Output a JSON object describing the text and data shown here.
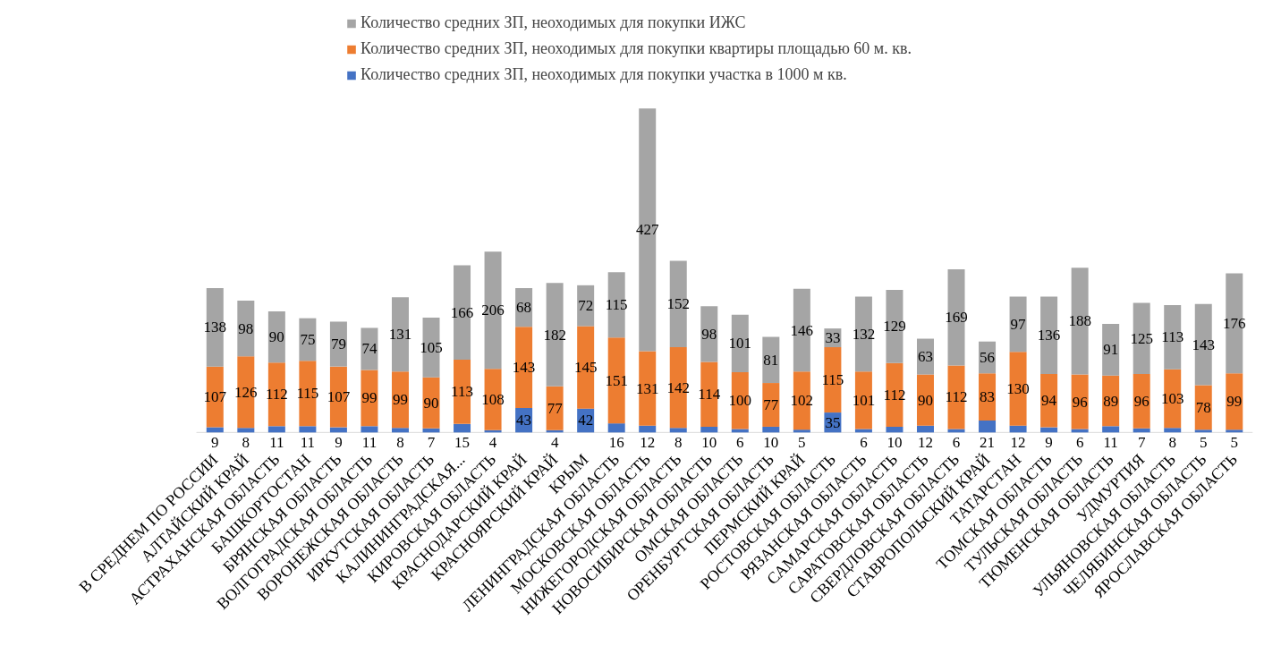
{
  "chart_data": {
    "type": "bar",
    "stacked": true,
    "data_labels": true,
    "legend": "top",
    "tick_labels": "x",
    "categories": [
      "В СРЕДНЕМ ПО РОССИИ",
      "АЛТАЙСКИЙ КРАЙ",
      "АСТРАХАНСКАЯ ОБЛАСТЬ",
      "БАШКОРТОСТАН",
      "БРЯНСКАЯ ОБЛАСТЬ",
      "ВОЛГОГРАДСКАЯ ОБЛАСТЬ",
      "ВОРОНЕЖСКАЯ ОБЛАСТЬ",
      "ИРКУТСКАЯ ОБЛАСТЬ",
      "КАЛИНИНГРАДСКАЯ...",
      "КИРОВСКАЯ ОБЛАСТЬ",
      "КРАСНОДАРСКИЙ КРАЙ",
      "КРАСНОЯРСКИЙ КРАЙ",
      "КРЫМ",
      "ЛЕНИНГРАДСКАЯ ОБЛАСТЬ",
      "МОСКОВСКАЯ ОБЛАСТЬ",
      "НИЖЕГОРОДСКАЯ ОБЛАСТЬ",
      "НОВОСИБИРСКАЯ ОБЛАСТЬ",
      "ОМСКАЯ ОБЛАСТЬ",
      "ОРЕНБУРГСКАЯ ОБЛАСТЬ",
      "ПЕРМСКИЙ КРАЙ",
      "РОСТОВСКАЯ ОБЛАСТЬ",
      "РЯЗАНСКАЯ ОБЛАСТЬ",
      "САМАРСКАЯ ОБЛАСТЬ",
      "САРАТОВСКАЯ ОБЛАСТЬ",
      "СВЕРДЛОВСКАЯ ОБЛАСТЬ",
      "СТАВРОПОЛЬСКИЙ КРАЙ",
      "ТАТАРСТАН",
      "ТОМСКАЯ ОБЛАСТЬ",
      "ТУЛЬСКАЯ ОБЛАСТЬ",
      "ТЮМЕНСКАЯ ОБЛАСТЬ",
      "УДМУРТИЯ",
      "УЛЬЯНОВСКАЯ ОБЛАСТЬ",
      "ЧЕЛЯБИНСКАЯ ОБЛАСТЬ",
      "ЯРОСЛАВСКАЯ ОБЛАСТЬ"
    ],
    "series": [
      {
        "name": "Количество средних ЗП, неоходимых для покупки участка в 1000 м кв.",
        "color": "#4472c4",
        "values": [
          9,
          8,
          11,
          11,
          9,
          11,
          8,
          7,
          15,
          4,
          43,
          4,
          42,
          16,
          12,
          8,
          10,
          6,
          10,
          5,
          35,
          6,
          10,
          12,
          6,
          21,
          12,
          9,
          6,
          11,
          7,
          8,
          5,
          5
        ]
      },
      {
        "name": "Количество средних ЗП, неоходимых для покупки квартиры площадью 60 м. кв.",
        "color": "#ed7d31",
        "values": [
          107,
          126,
          112,
          115,
          107,
          99,
          99,
          90,
          113,
          108,
          143,
          77,
          145,
          151,
          131,
          142,
          114,
          100,
          77,
          102,
          115,
          101,
          112,
          90,
          112,
          83,
          130,
          94,
          96,
          89,
          96,
          103,
          78,
          99
        ]
      },
      {
        "name": "Количество средних ЗП, неоходимых для покупки ИЖС",
        "color": "#a5a5a5",
        "values": [
          138,
          98,
          90,
          75,
          79,
          74,
          131,
          105,
          166,
          206,
          68,
          182,
          72,
          115,
          427,
          152,
          98,
          101,
          81,
          146,
          33,
          132,
          129,
          63,
          169,
          56,
          97,
          136,
          188,
          91,
          125,
          113,
          143,
          176
        ]
      }
    ]
  }
}
